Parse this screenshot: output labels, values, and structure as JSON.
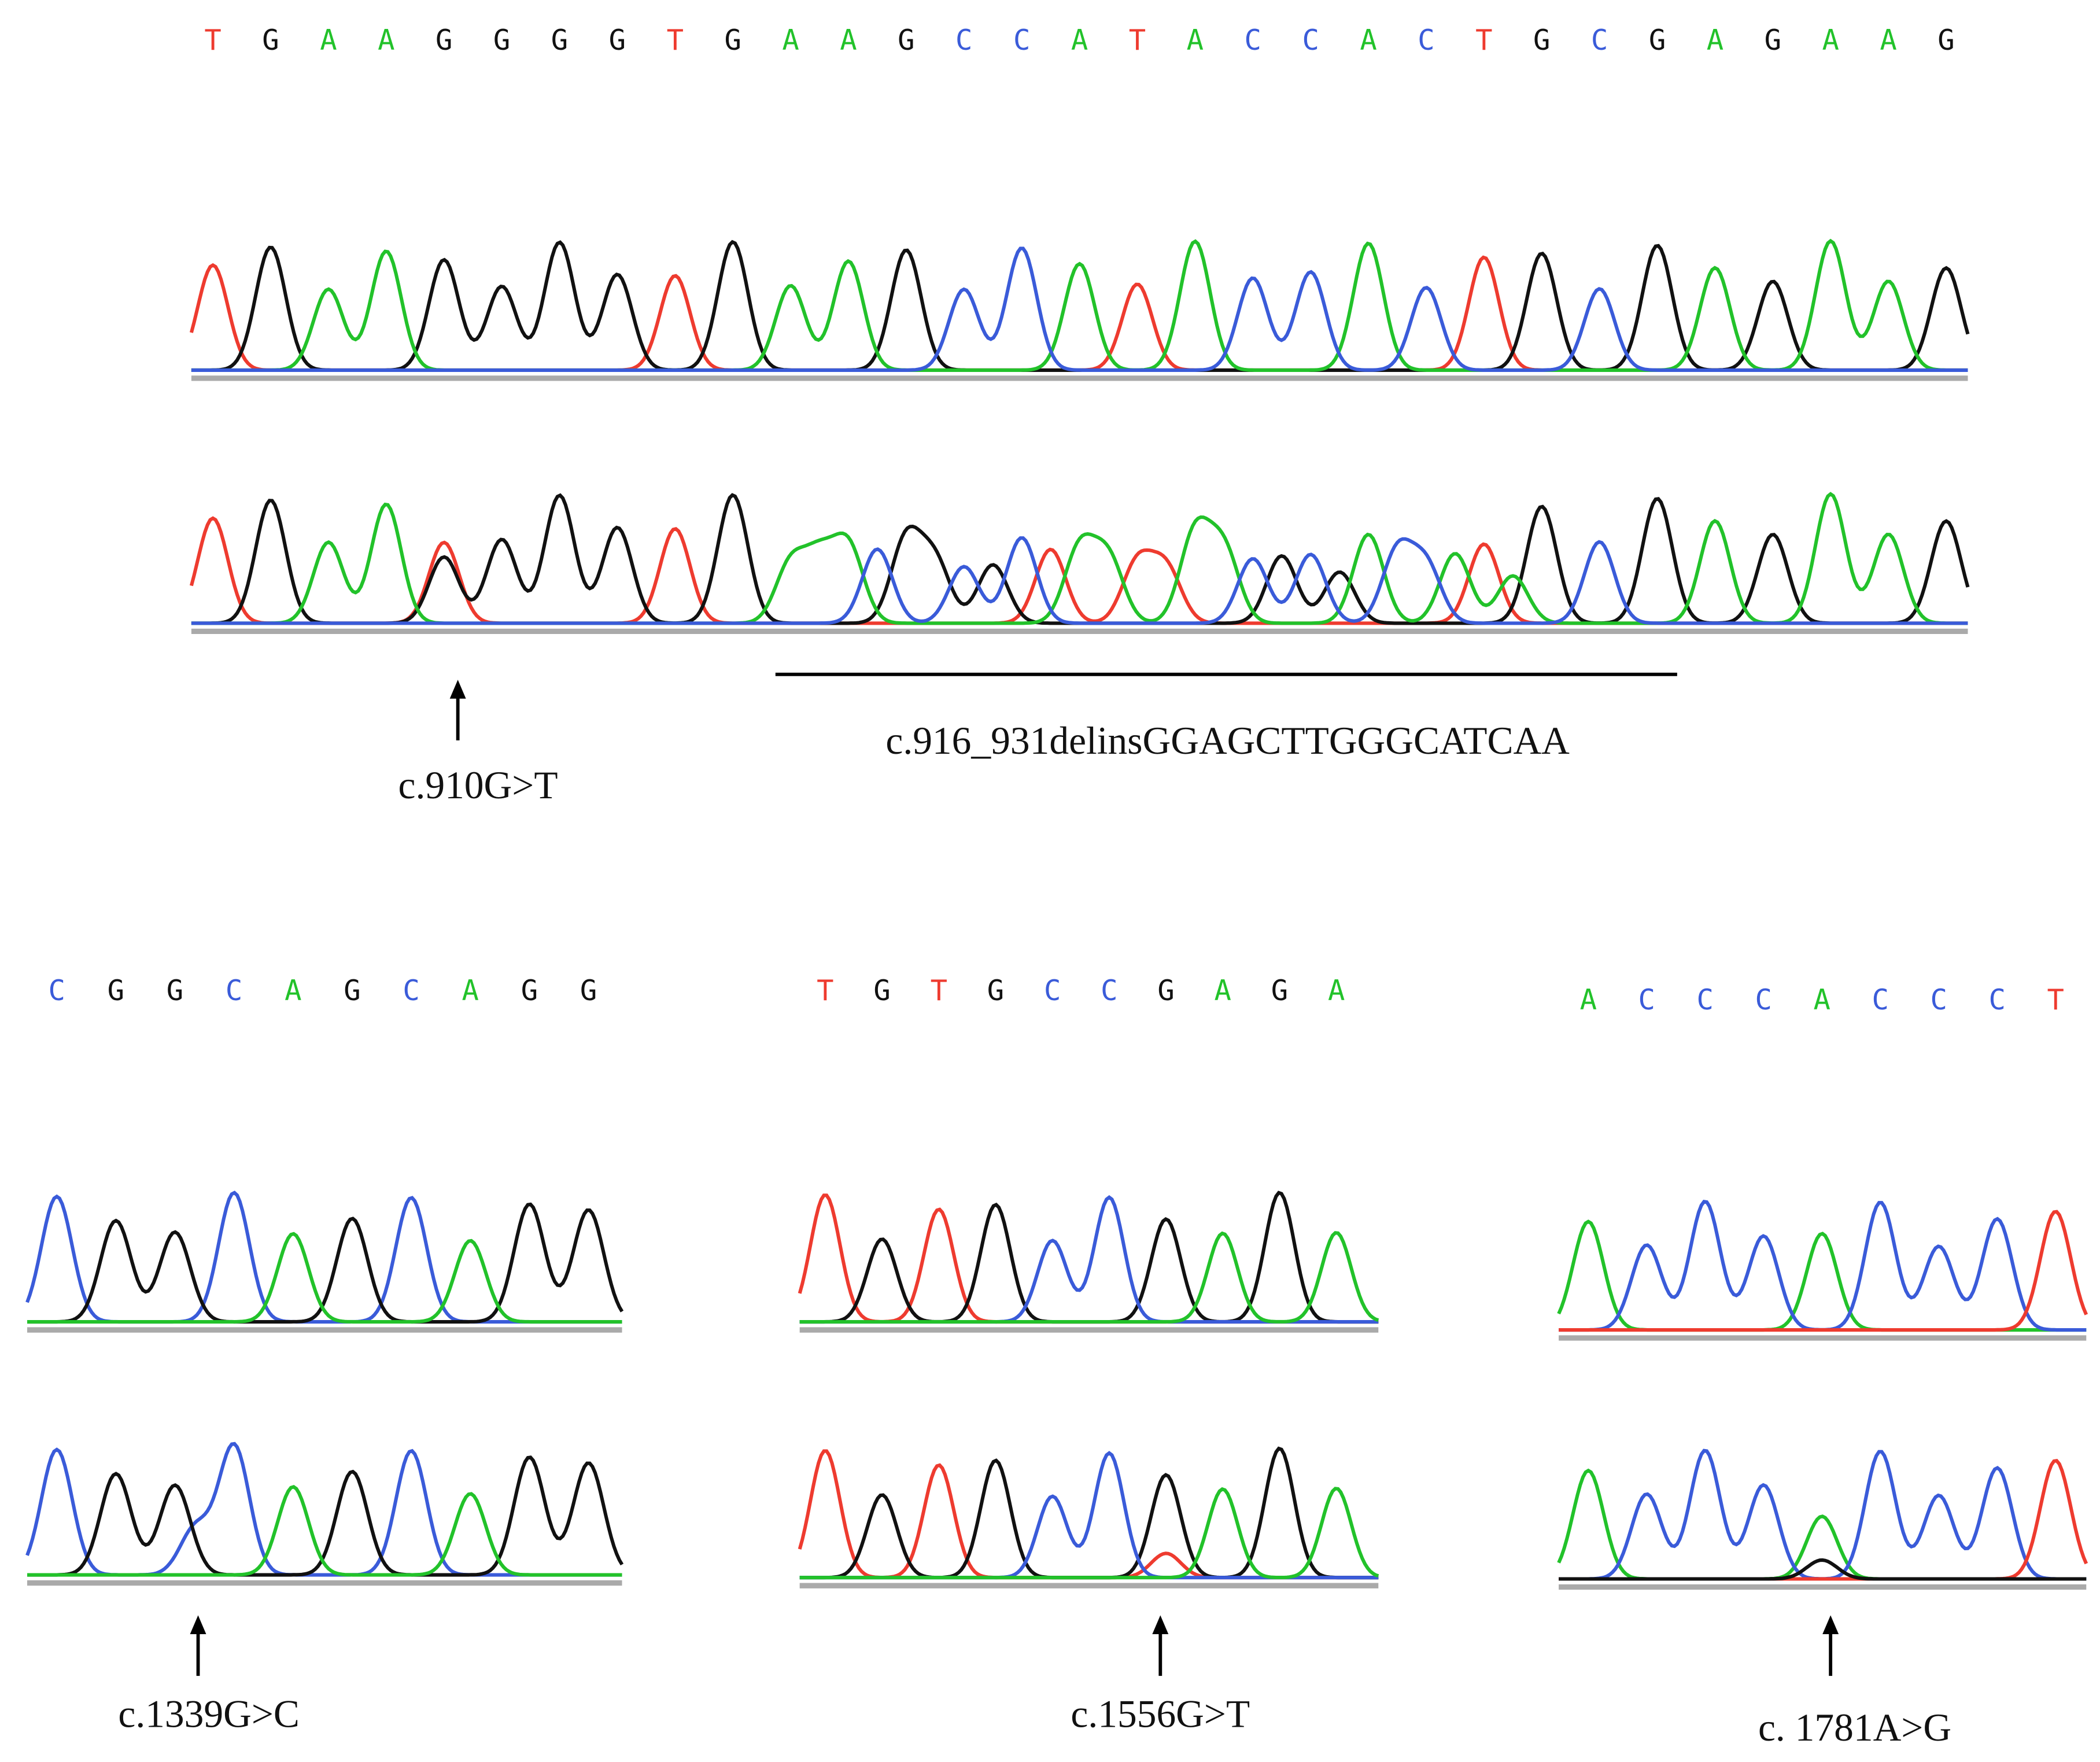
{
  "base_colors": {
    "A": "#22c22a",
    "C": "#3a5bd9",
    "G": "#111111",
    "T": "#ee3b2f"
  },
  "panels": [
    {
      "sequence": [
        "T",
        "G",
        "A",
        "A",
        "G",
        "G",
        "G",
        "G",
        "T",
        "G",
        "A",
        "A",
        "G",
        "C",
        "C",
        "A",
        "T",
        "A",
        "C",
        "C",
        "A",
        "C",
        "T",
        "G",
        "C",
        "G",
        "A",
        "G",
        "A",
        "A",
        "G"
      ],
      "annotations": [
        "c.910G>T",
        "c.916_931delinsGGAGCTTGGGCATCAA"
      ]
    },
    {
      "sequence": [
        "C",
        "G",
        "G",
        "C",
        "A",
        "G",
        "C",
        "A",
        "G",
        "G"
      ],
      "annotations": [
        "c.1339G>C"
      ]
    },
    {
      "sequence": [
        "T",
        "G",
        "T",
        "G",
        "C",
        "C",
        "G",
        "A",
        "G",
        "A"
      ],
      "annotations": [
        "c.1556G>T"
      ]
    },
    {
      "sequence": [
        "A",
        "C",
        "C",
        "C",
        "A",
        "C",
        "C",
        "C",
        "T"
      ],
      "annotations": [
        "c. 1781A>G"
      ]
    }
  ]
}
